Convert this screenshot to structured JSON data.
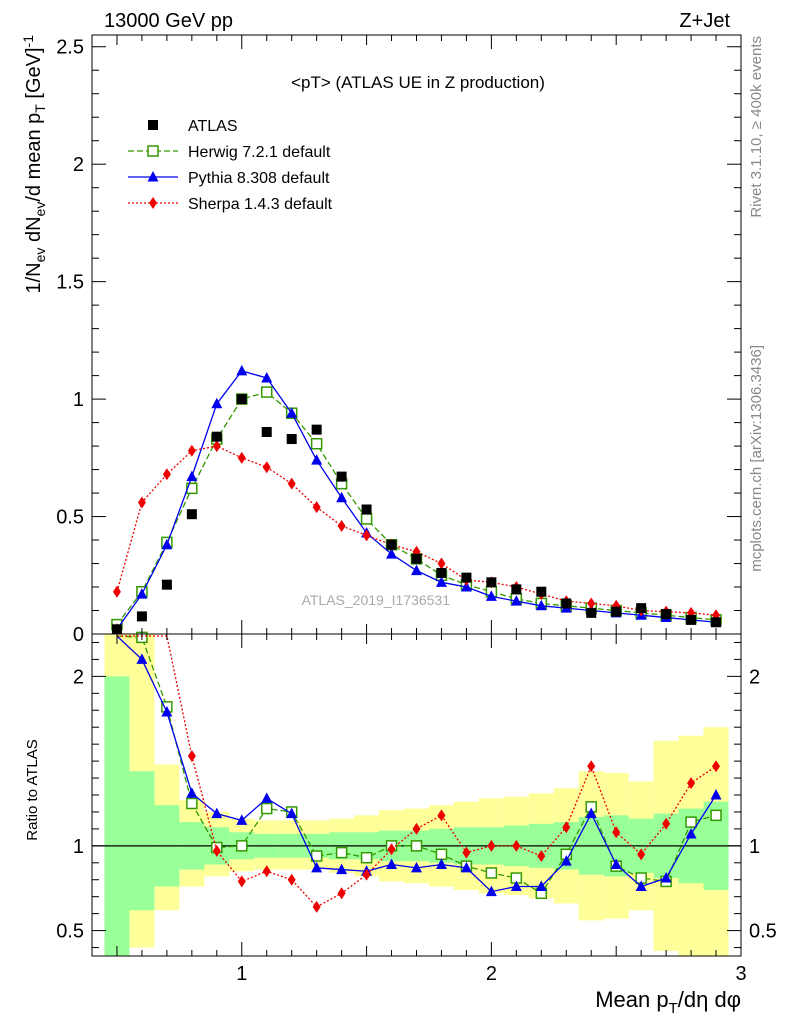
{
  "header": {
    "beam": "13000 GeV pp",
    "process": "Z+Jet",
    "plot_title": "<pT> (ATLAS UE in Z production)",
    "watermark": "ATLAS_2019_I1736531",
    "side_label_top": "Rivet 3.1.10, ≥ 400k events",
    "side_label_bottom": "mcplots.cern.ch [arXiv:1306.3436]"
  },
  "chart_data": [
    {
      "type": "line",
      "panel": "main",
      "ylabel": "1/N_ev dN_ev/d mean p_T [GeV]^-1",
      "xlim": [
        0.4,
        3.0
      ],
      "ylim": [
        0,
        2.55
      ],
      "yticks": [
        0,
        0.5,
        1,
        1.5,
        2,
        2.5
      ],
      "ytick_labels": [
        "0",
        "0.5",
        "1",
        "1.5",
        "2",
        "2.5"
      ],
      "legend_position": "top-left",
      "x": [
        0.5,
        0.6,
        0.7,
        0.8,
        0.9,
        1.0,
        1.1,
        1.2,
        1.3,
        1.4,
        1.5,
        1.6,
        1.7,
        1.8,
        1.9,
        2.0,
        2.1,
        2.2,
        2.3,
        2.4,
        2.5,
        2.6,
        2.7,
        2.8,
        2.9
      ],
      "series": [
        {
          "name": "ATLAS",
          "color": "#000000",
          "marker": "square",
          "line": "none",
          "values": [
            0.02,
            0.075,
            0.21,
            0.51,
            0.84,
            1.0,
            0.86,
            0.83,
            0.87,
            0.67,
            0.53,
            0.38,
            0.32,
            0.26,
            0.24,
            0.22,
            0.19,
            0.18,
            0.13,
            0.09,
            0.095,
            0.11,
            0.085,
            0.06,
            0.05
          ]
        },
        {
          "name": "Herwig 7.2.1 default",
          "color": "#339900",
          "marker": "open-square",
          "line": "dashed",
          "values": [
            0.04,
            0.18,
            0.39,
            0.62,
            0.83,
            1.0,
            1.03,
            0.94,
            0.81,
            0.64,
            0.49,
            0.38,
            0.32,
            0.25,
            0.21,
            0.18,
            0.15,
            0.13,
            0.12,
            0.11,
            0.1,
            0.09,
            0.08,
            0.07,
            0.06
          ]
        },
        {
          "name": "Pythia 8.308 default",
          "color": "#0000ee",
          "marker": "triangle",
          "line": "solid",
          "values": [
            0.02,
            0.17,
            0.38,
            0.67,
            0.98,
            1.12,
            1.09,
            0.94,
            0.74,
            0.58,
            0.43,
            0.34,
            0.27,
            0.22,
            0.2,
            0.16,
            0.14,
            0.12,
            0.11,
            0.1,
            0.09,
            0.08,
            0.07,
            0.06,
            0.05
          ]
        },
        {
          "name": "Sherpa 1.4.3 default",
          "color": "#ee0000",
          "marker": "diamond",
          "line": "dotted",
          "values": [
            0.18,
            0.56,
            0.68,
            0.78,
            0.8,
            0.75,
            0.71,
            0.64,
            0.54,
            0.46,
            0.42,
            0.38,
            0.35,
            0.3,
            0.23,
            0.22,
            0.2,
            0.17,
            0.14,
            0.13,
            0.12,
            0.1,
            0.095,
            0.09,
            0.08
          ]
        }
      ]
    },
    {
      "type": "line",
      "panel": "ratio",
      "ylabel": "Ratio to ATLAS",
      "xlabel": "Mean p_T/dη dφ",
      "xlim": [
        0.4,
        3.0
      ],
      "ylim": [
        0.35,
        2.25
      ],
      "yticks": [
        0.5,
        1,
        2
      ],
      "ytick_labels": [
        "0.5",
        "1",
        "2"
      ],
      "xticks": [
        1,
        2,
        3
      ],
      "xtick_labels": [
        "1",
        "2",
        "3"
      ],
      "band_edges": [
        0.45,
        0.55,
        0.65,
        0.75,
        0.85,
        0.95,
        1.05,
        1.15,
        1.25,
        1.35,
        1.45,
        1.55,
        1.65,
        1.75,
        1.85,
        1.95,
        2.05,
        2.15,
        2.25,
        2.35,
        2.45,
        2.55,
        2.65,
        2.75,
        2.85,
        2.95
      ],
      "band_inner": {
        "color": "#99ff99",
        "low": [
          0.35,
          0.62,
          0.76,
          0.86,
          0.89,
          0.92,
          0.93,
          0.93,
          0.93,
          0.92,
          0.92,
          0.91,
          0.91,
          0.9,
          0.89,
          0.89,
          0.88,
          0.87,
          0.86,
          0.83,
          0.82,
          0.84,
          0.81,
          0.78,
          0.74
        ],
        "high": [
          2.0,
          1.44,
          1.24,
          1.14,
          1.11,
          1.08,
          1.07,
          1.07,
          1.07,
          1.08,
          1.08,
          1.09,
          1.09,
          1.1,
          1.11,
          1.11,
          1.12,
          1.13,
          1.14,
          1.17,
          1.18,
          1.16,
          1.19,
          1.22,
          1.26
        ]
      },
      "band_outer": {
        "color": "#ffff99",
        "low": [
          0.35,
          0.4,
          0.62,
          0.76,
          0.82,
          0.85,
          0.86,
          0.86,
          0.86,
          0.84,
          0.82,
          0.79,
          0.78,
          0.76,
          0.74,
          0.72,
          0.71,
          0.69,
          0.66,
          0.56,
          0.57,
          0.62,
          0.38,
          0.35,
          0.35
        ],
        "high": [
          2.25,
          2.25,
          1.48,
          1.27,
          1.2,
          1.16,
          1.15,
          1.15,
          1.15,
          1.16,
          1.18,
          1.21,
          1.22,
          1.24,
          1.26,
          1.28,
          1.29,
          1.31,
          1.34,
          1.44,
          1.43,
          1.38,
          1.62,
          1.65,
          1.7
        ]
      },
      "series": [
        {
          "name": "Herwig 7.2.1 default",
          "color": "#339900",
          "marker": "open-square",
          "line": "dashed",
          "values": [
            2.3,
            2.23,
            1.82,
            1.25,
            0.99,
            1.0,
            1.22,
            1.2,
            0.94,
            0.96,
            0.93,
            1.0,
            1.0,
            0.95,
            0.88,
            0.84,
            0.81,
            0.72,
            0.95,
            1.23,
            0.88,
            0.81,
            0.79,
            1.14,
            1.18
          ]
        },
        {
          "name": "Pythia 8.308 default",
          "color": "#0000ee",
          "marker": "triangle",
          "line": "solid",
          "values": [
            2.3,
            2.1,
            1.79,
            1.31,
            1.19,
            1.15,
            1.28,
            1.19,
            0.87,
            0.86,
            0.85,
            0.89,
            0.87,
            0.89,
            0.87,
            0.73,
            0.76,
            0.76,
            0.91,
            1.19,
            0.89,
            0.76,
            0.81,
            1.07,
            1.3
          ]
        },
        {
          "name": "Sherpa 1.4.3 default",
          "color": "#ee0000",
          "marker": "diamond",
          "line": "dotted",
          "values": [
            2.3,
            2.3,
            2.3,
            1.53,
            0.97,
            0.79,
            0.85,
            0.8,
            0.64,
            0.72,
            0.83,
            0.98,
            1.1,
            1.18,
            0.96,
            1.0,
            1.0,
            0.94,
            1.11,
            1.47,
            1.08,
            0.95,
            1.13,
            1.37,
            1.47
          ]
        }
      ]
    }
  ]
}
